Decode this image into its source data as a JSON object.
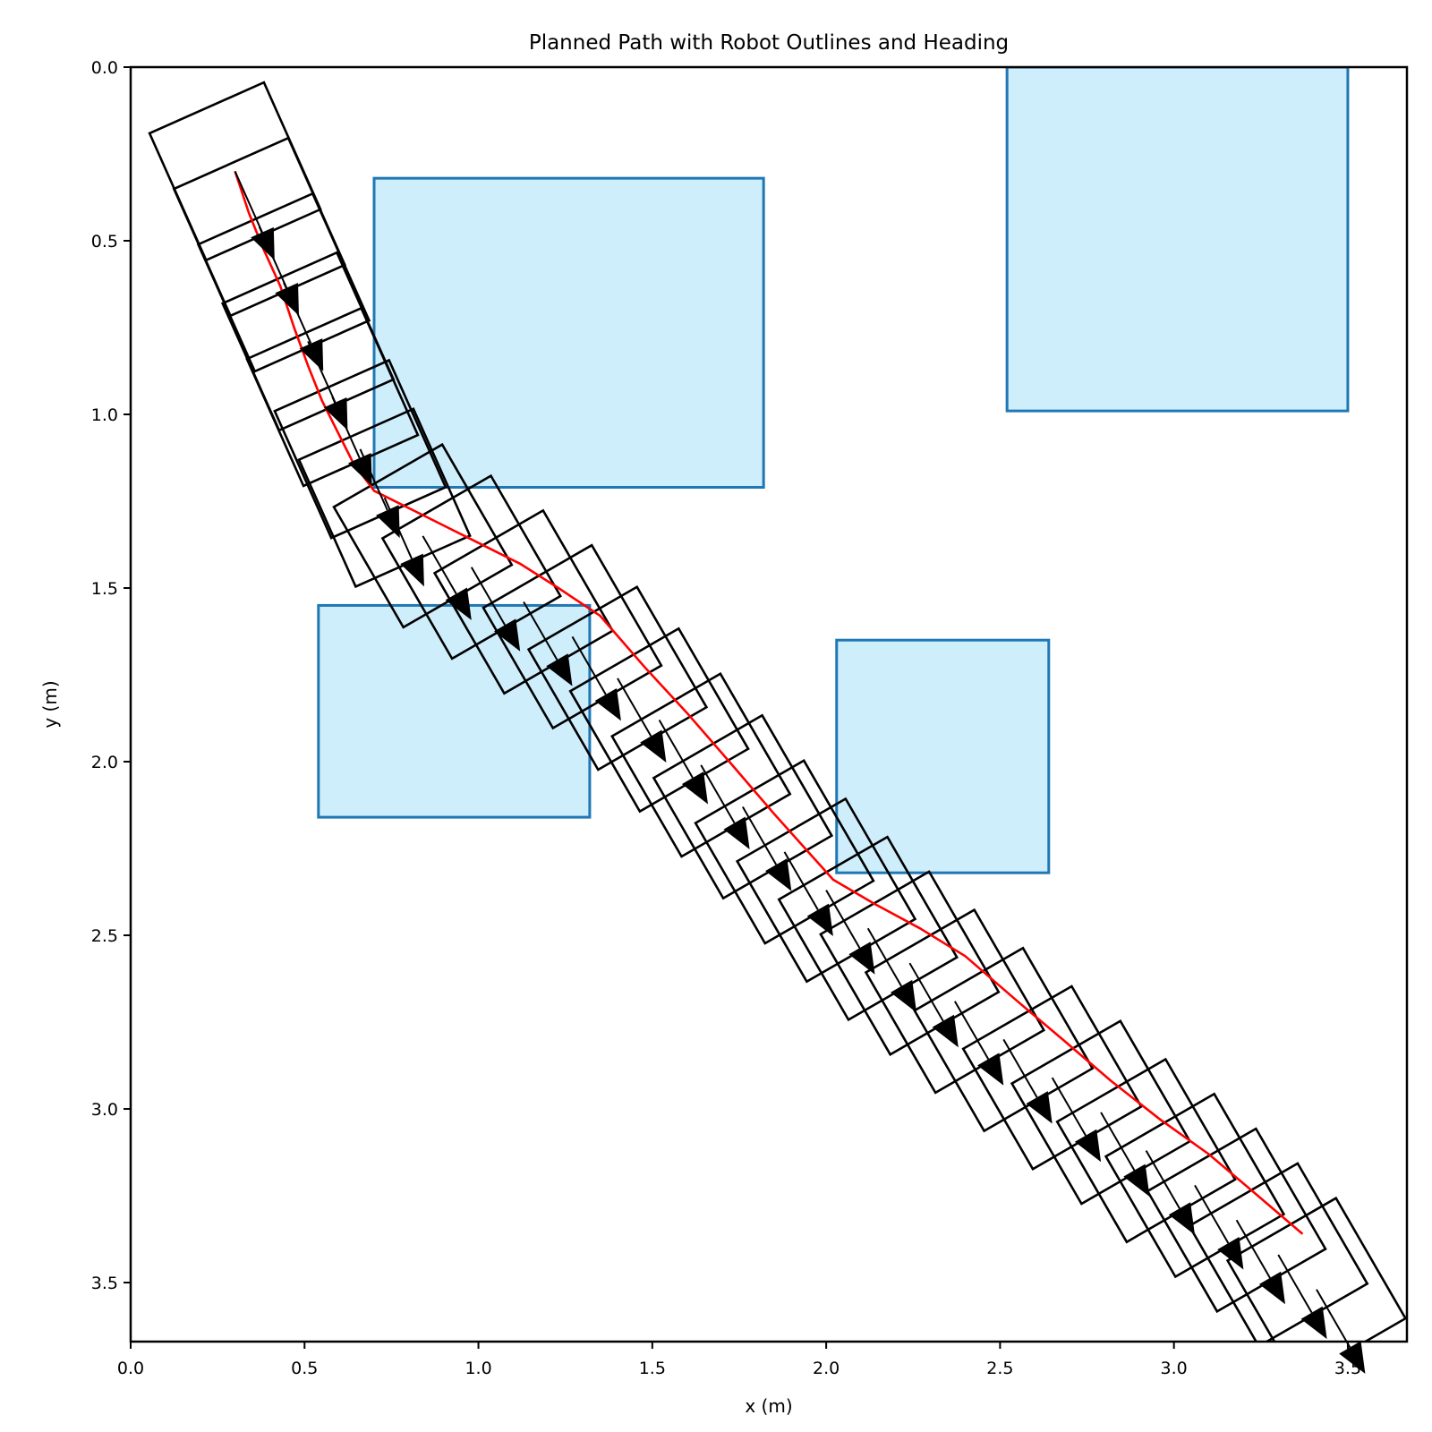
{
  "chart_data": {
    "type": "line",
    "title": "Planned Path with Robot Outlines and Heading",
    "xlabel": "x (m)",
    "ylabel": "y (m)",
    "xlim": [
      0.0,
      3.67
    ],
    "ylim": [
      3.67,
      0.0
    ],
    "y_inverted": true,
    "grid": false,
    "xticks": [
      "0.0",
      "0.5",
      "1.0",
      "1.5",
      "2.0",
      "2.5",
      "3.0",
      "3.5"
    ],
    "yticks": [
      "0.0",
      "0.5",
      "1.0",
      "1.5",
      "2.0",
      "2.5",
      "3.0",
      "3.5"
    ],
    "robot": {
      "length": 0.4,
      "width": 0.36
    },
    "obstacles": [
      {
        "x0": 0.7,
        "y0": 0.32,
        "x1": 1.82,
        "y1": 1.21
      },
      {
        "x0": 2.52,
        "y0": 0.0,
        "x1": 3.5,
        "y1": 0.99
      },
      {
        "x0": 0.54,
        "y0": 1.55,
        "x1": 1.32,
        "y1": 2.16
      },
      {
        "x0": 2.03,
        "y0": 1.65,
        "x1": 2.64,
        "y1": 2.32
      }
    ],
    "path": {
      "color": "#ff0000",
      "x": [
        0.3,
        0.34,
        0.38,
        0.43,
        0.47,
        0.51,
        0.55,
        0.6,
        0.64,
        0.7,
        0.84,
        0.98,
        1.12,
        1.23,
        1.35,
        1.48,
        1.6,
        1.73,
        1.85,
        2.02,
        2.14,
        2.27,
        2.4,
        2.55,
        2.68,
        2.82,
        2.96,
        3.1,
        3.23,
        3.37
      ],
      "y": [
        0.3,
        0.42,
        0.52,
        0.63,
        0.75,
        0.86,
        0.96,
        1.06,
        1.14,
        1.22,
        1.29,
        1.36,
        1.43,
        1.5,
        1.58,
        1.73,
        1.86,
        2.01,
        2.15,
        2.34,
        2.41,
        2.48,
        2.56,
        2.69,
        2.8,
        2.92,
        3.03,
        3.13,
        3.24,
        3.36
      ]
    },
    "poses": {
      "x": [
        0.3,
        0.37,
        0.44,
        0.51,
        0.58,
        0.66,
        0.73,
        0.84,
        0.98,
        1.13,
        1.27,
        1.4,
        1.52,
        1.64,
        1.76,
        1.88,
        2.0,
        2.12,
        2.24,
        2.37,
        2.51,
        2.65,
        2.79,
        2.92,
        3.06,
        3.18,
        3.3,
        3.41
      ],
      "y": [
        0.3,
        0.46,
        0.62,
        0.79,
        0.95,
        1.1,
        1.24,
        1.35,
        1.44,
        1.54,
        1.64,
        1.76,
        1.88,
        2.01,
        2.13,
        2.26,
        2.37,
        2.48,
        2.58,
        2.69,
        2.8,
        2.91,
        3.01,
        3.12,
        3.22,
        3.32,
        3.42,
        3.52
      ],
      "heading_deg": [
        66,
        66,
        66,
        66,
        66,
        66,
        66,
        60,
        60,
        60,
        60,
        60,
        60,
        60,
        60,
        60,
        60,
        60,
        60,
        60,
        60,
        60,
        60,
        60,
        60,
        60,
        60,
        60
      ]
    }
  }
}
